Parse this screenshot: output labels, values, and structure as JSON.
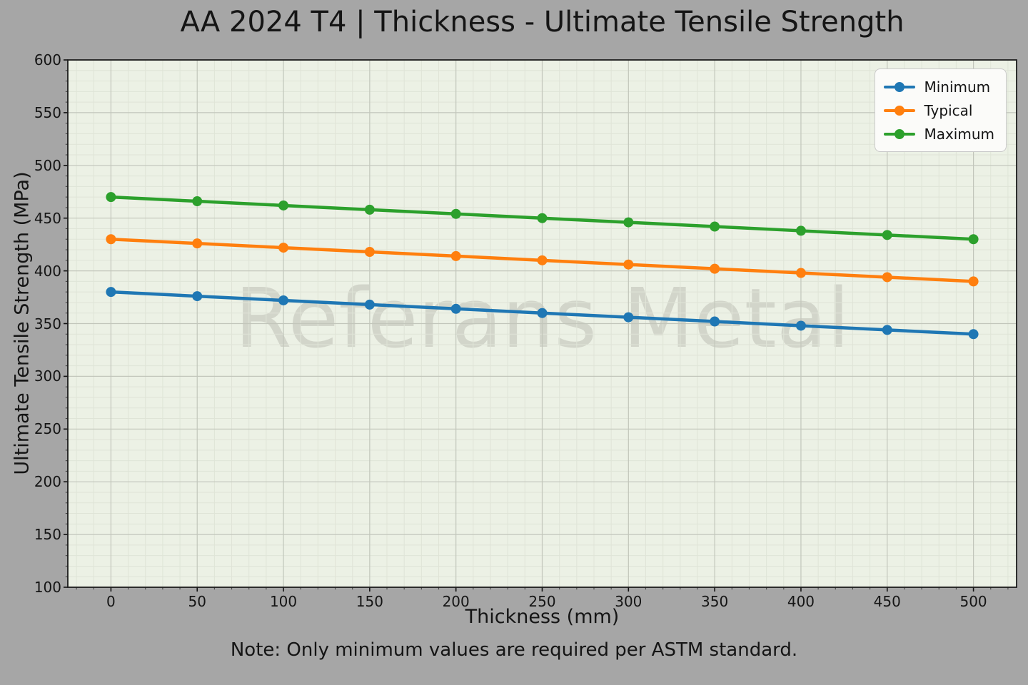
{
  "chart_data": {
    "type": "line",
    "title": "AA 2024 T4 | Thickness - Ultimate Tensile Strength",
    "xlabel": "Thickness (mm)",
    "ylabel": "Ultimate Tensile Strength (MPa)",
    "note": "Note: Only minimum values are required per ASTM standard.",
    "watermark": "Referans Metal",
    "x": [
      0,
      50,
      100,
      150,
      200,
      250,
      300,
      350,
      400,
      450,
      500
    ],
    "series": [
      {
        "name": "Minimum",
        "color": "#1f77b4",
        "values": [
          380,
          376,
          372,
          368,
          364,
          360,
          356,
          352,
          348,
          344,
          340
        ]
      },
      {
        "name": "Typical",
        "color": "#ff7f0e",
        "values": [
          430,
          426,
          422,
          418,
          414,
          410,
          406,
          402,
          398,
          394,
          390
        ]
      },
      {
        "name": "Maximum",
        "color": "#2ca02c",
        "values": [
          470,
          466,
          462,
          458,
          454,
          450,
          446,
          442,
          438,
          434,
          430
        ]
      }
    ],
    "xlim": [
      -25,
      525
    ],
    "ylim": [
      100,
      600
    ],
    "xticks": [
      0,
      50,
      100,
      150,
      200,
      250,
      300,
      350,
      400,
      450,
      500
    ],
    "yticks": [
      100,
      150,
      200,
      250,
      300,
      350,
      400,
      450,
      500,
      550,
      600
    ],
    "minor_x_step": 10,
    "minor_y_step": 10,
    "grid": true,
    "legend_position": "top-right",
    "marker": "circle",
    "colors": {
      "figure_bg": "#a6a6a6",
      "plot_bg": "#ecf1e5",
      "grid_minor": "#dfe4d7",
      "grid_major": "#c2c6bb",
      "spine": "#1c1c1c",
      "text": "#151515",
      "watermark": "#d2d5ca",
      "legend_bg": "#fbfbf9",
      "legend_border": "#c9c9c9"
    }
  }
}
